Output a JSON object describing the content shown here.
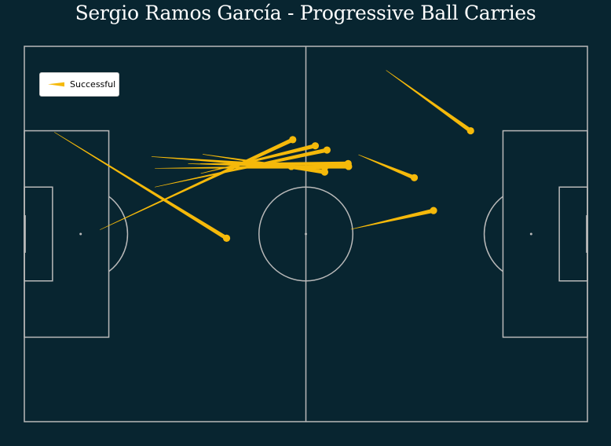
{
  "title": "Sergio Ramos García - Progressive Ball Carries",
  "colors": {
    "background": "#082530",
    "pitch_lines": "#b9b9b9",
    "carry": "#f5b90a"
  },
  "legend": {
    "label": "Successful",
    "placement": "upper-left"
  },
  "chart_data": {
    "type": "scatter",
    "title": "Sergio Ramos García - Progressive Ball Carries",
    "pitch": {
      "length": 120,
      "width": 80
    },
    "series": [
      {
        "name": "Successful",
        "carries": [
          {
            "x_start": 6.4,
            "y_start": 18.3,
            "x_end": 43.1,
            "y_end": 40.9
          },
          {
            "x_start": 16.1,
            "y_start": 39.1,
            "x_end": 57.2,
            "y_end": 19.9
          },
          {
            "x_start": 27.1,
            "y_start": 23.5,
            "x_end": 56.9,
            "y_end": 25.6
          },
          {
            "x_start": 27.8,
            "y_start": 26.0,
            "x_end": 69.1,
            "y_end": 25.6
          },
          {
            "x_start": 34.9,
            "y_start": 25.0,
            "x_end": 64.0,
            "y_end": 25.8
          },
          {
            "x_start": 37.6,
            "y_start": 27.1,
            "x_end": 62.0,
            "y_end": 21.2
          },
          {
            "x_start": 27.8,
            "y_start": 30.0,
            "x_end": 64.5,
            "y_end": 22.1
          },
          {
            "x_start": 38.0,
            "y_start": 23.0,
            "x_end": 64.0,
            "y_end": 26.8
          },
          {
            "x_start": 37.5,
            "y_start": 25.0,
            "x_end": 69.0,
            "y_end": 25.0
          },
          {
            "x_start": 69.6,
            "y_start": 39.0,
            "x_end": 87.2,
            "y_end": 35.0
          },
          {
            "x_start": 71.2,
            "y_start": 23.1,
            "x_end": 83.1,
            "y_end": 28.0
          },
          {
            "x_start": 77.1,
            "y_start": 5.1,
            "x_end": 95.1,
            "y_end": 18.0
          }
        ]
      }
    ]
  }
}
